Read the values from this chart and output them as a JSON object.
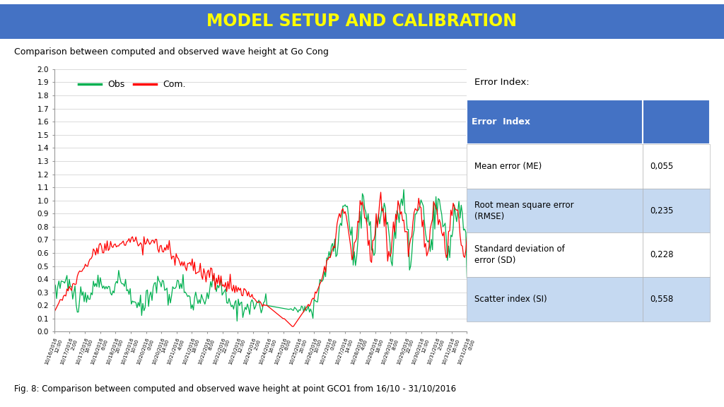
{
  "title": "MODEL SETUP AND CALIBRATION",
  "title_color": "#FFFF00",
  "title_bg_color": "#4472C4",
  "subtitle": "Comparison between computed and observed wave height at Go Cong",
  "caption": "Fig. 8: Comparison between computed and observed wave height at point GCO1 from 16/10 - 31/10/2016",
  "ylim": [
    0,
    2.0
  ],
  "yticks": [
    0,
    0.1,
    0.2,
    0.3,
    0.4,
    0.5,
    0.6,
    0.7,
    0.8,
    0.9,
    1.0,
    1.1,
    1.2,
    1.3,
    1.4,
    1.5,
    1.6,
    1.7,
    1.8,
    1.9,
    2.0
  ],
  "obs_color": "#00B050",
  "com_color": "#FF0000",
  "legend_obs": "Obs",
  "legend_com": "Com.",
  "error_title": "Error Index:",
  "table_header": [
    "Error  Index",
    ""
  ],
  "table_header_bg": "#4472C4",
  "table_header_color": "#FFFFFF",
  "table_rows": [
    [
      "Mean error (ME)",
      "0,055"
    ],
    [
      "Root mean square error\n(RMSE)",
      "0,235"
    ],
    [
      "Standard deviation of\nerror (SD)",
      "0,228"
    ],
    [
      "Scatter index (SI)",
      "0,558"
    ]
  ],
  "table_row_bg_alt": "#C5D9F1",
  "table_row_bg": "#FFFFFF",
  "x_tick_labels": [
    "10/16/2016\n12:00",
    "10/17/2016\n2:00",
    "10/17/2016\n16:00",
    "10/18/2016\n6:00",
    "10/18/2016\n20:00",
    "10/19/2016\n10:00",
    "10/20/2016\n0:00",
    "10/20/2016\n14:00",
    "10/21/2016\n4:00",
    "10/21/2016\n18:00",
    "10/22/2016\n8:00",
    "10/22/2016\n22:00",
    "10/23/2016\n12:00",
    "10/24/2016\n2:00",
    "10/24/2016\n16:00",
    "10/25/2016\n6:00",
    "10/25/2016\n20:00",
    "10/26/2016\n10:00",
    "10/27/2016\n0:00",
    "10/27/2016\n14:00",
    "10/28/2016\n4:00",
    "10/28/2016\n18:00",
    "10/29/2016\n8:00",
    "10/29/2016\n22:00",
    "10/30/2016\n12:00",
    "10/31/2016\n2:00",
    "10/31/2016\n16:00",
    "10/31/2016\n0:00"
  ]
}
